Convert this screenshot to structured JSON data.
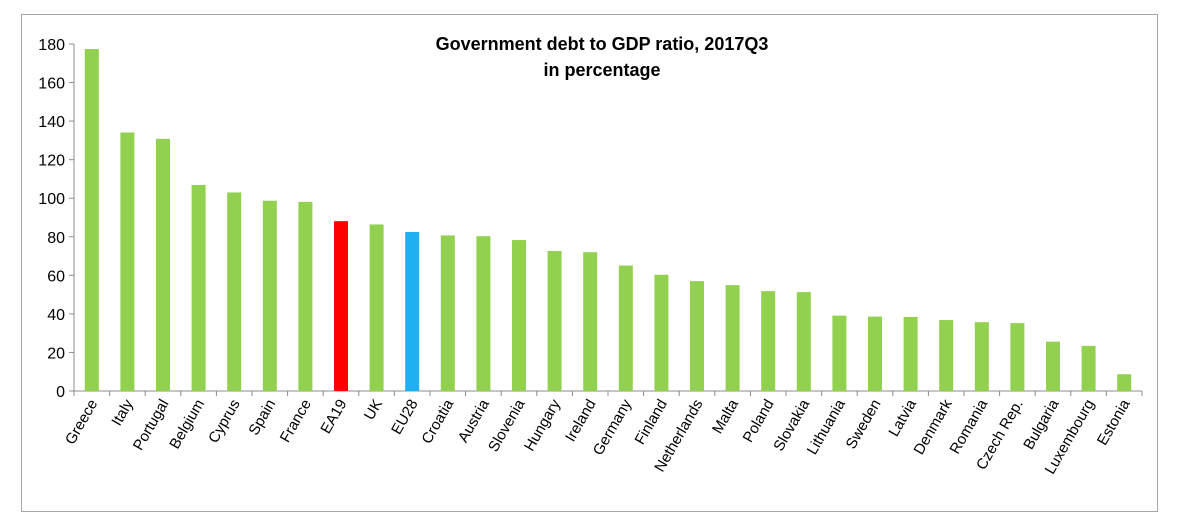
{
  "chart_data": {
    "type": "bar",
    "title": "Government debt to GDP ratio, 2017Q3",
    "subtitle": "in percentage",
    "xlabel": "",
    "ylabel": "",
    "ylim": [
      0,
      180
    ],
    "yticks": [
      "0",
      "20",
      "40",
      "60",
      "80",
      "100",
      "120",
      "140",
      "160",
      "180"
    ],
    "grid": false,
    "legend": "none",
    "categories": [
      "Greece",
      "Italy",
      "Portugal",
      "Belgium",
      "Cyprus",
      "Spain",
      "France",
      "EA19",
      "UK",
      "EU28",
      "Croatia",
      "Austria",
      "Slovenia",
      "Hungary",
      "Ireland",
      "Germany",
      "Finland",
      "Netherlands",
      "Malta",
      "Poland",
      "Slovakia",
      "Lithuania",
      "Sweden",
      "Latvia",
      "Denmark",
      "Romania",
      "Czech Rep.",
      "Bulgaria",
      "Luxembourg",
      "Estonia"
    ],
    "values": [
      177.4,
      134.1,
      130.8,
      106.9,
      103.0,
      98.7,
      98.1,
      88.1,
      86.4,
      82.5,
      80.7,
      80.3,
      78.3,
      72.6,
      72.0,
      65.1,
      60.3,
      57.0,
      54.9,
      51.8,
      51.3,
      39.1,
      38.6,
      38.4,
      36.8,
      35.7,
      35.2,
      25.6,
      23.4,
      8.7
    ],
    "colors": {
      "default": "#92d050",
      "EA19": "#ff0000",
      "EU28": "#1eb0f0"
    }
  }
}
